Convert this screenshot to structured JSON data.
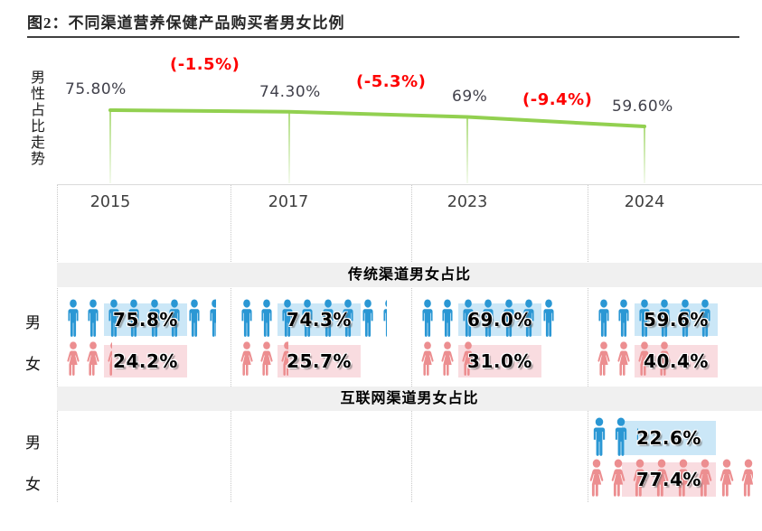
{
  "title": "图2：不同渠道营养保健产品购买者男女比例",
  "years": [
    "2015",
    "2017",
    "2023",
    "2024"
  ],
  "trend": {
    "axis_label": "男性占比走势",
    "values": [
      75.8,
      74.3,
      69,
      59.6
    ],
    "value_labels": [
      "75.80%",
      "74.30%",
      "69%",
      "59.60%"
    ],
    "delta_labels": [
      "(-1.5%)",
      "(-5.3%)",
      "(-9.4%)"
    ]
  },
  "table": {
    "row_labels": {
      "male": "男",
      "female": "女"
    },
    "sections": [
      {
        "header": "传统渠道男女占比",
        "male": {
          "values": [
            75.8,
            74.3,
            69,
            59.6
          ],
          "labels": [
            "75.8%",
            "74.3%",
            "69.0%",
            "59.6%"
          ]
        },
        "female": {
          "values": [
            24.2,
            25.7,
            31,
            40.4
          ],
          "labels": [
            "24.2%",
            "25.7%",
            "31.0%",
            "40.4%"
          ]
        }
      },
      {
        "header": "互联网渠道男女占比",
        "male": {
          "values": [
            null,
            null,
            null,
            22.6
          ],
          "labels": [
            null,
            null,
            null,
            "22.6%"
          ]
        },
        "female": {
          "values": [
            null,
            null,
            null,
            77.4
          ],
          "labels": [
            null,
            null,
            null,
            "77.4%"
          ]
        }
      }
    ]
  },
  "colors": {
    "male": "#2a97d4",
    "male_highlight": "#cbe7f7",
    "female": "#ec8e90",
    "female_highlight": "#f9dce0",
    "trend_line": "#92d050",
    "delta_text": "#fe0000",
    "section_band": "#f0f0f0"
  },
  "chart_data": [
    {
      "type": "line",
      "title": "男性占比走势",
      "x": [
        "2015",
        "2017",
        "2023",
        "2024"
      ],
      "values": [
        75.8,
        74.3,
        69,
        59.6
      ],
      "point_labels": [
        "75.80%",
        "74.30%",
        "69%",
        "59.60%"
      ],
      "annotations": [
        "(-1.5%)",
        "(-5.3%)",
        "(-9.4%)"
      ],
      "line_color": "#92d050",
      "legend": "none",
      "grid": false
    },
    {
      "type": "pictogram",
      "title": "传统渠道男女占比",
      "categories": [
        "2015",
        "2017",
        "2023",
        "2024"
      ],
      "series": [
        {
          "name": "男",
          "values": [
            75.8,
            74.3,
            69,
            59.6
          ]
        },
        {
          "name": "女",
          "values": [
            24.2,
            25.7,
            31,
            40.4
          ]
        }
      ],
      "unit": "%"
    },
    {
      "type": "pictogram",
      "title": "互联网渠道男女占比",
      "categories": [
        "2015",
        "2017",
        "2023",
        "2024"
      ],
      "series": [
        {
          "name": "男",
          "values": [
            null,
            null,
            null,
            22.6
          ]
        },
        {
          "name": "女",
          "values": [
            null,
            null,
            null,
            77.4
          ]
        }
      ],
      "unit": "%"
    }
  ]
}
